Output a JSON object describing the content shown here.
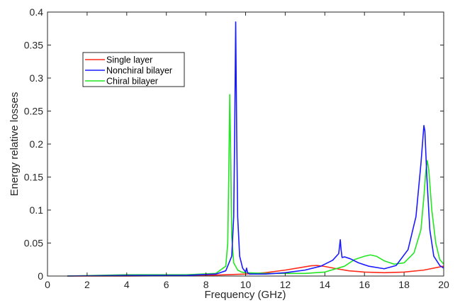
{
  "chart_data": {
    "type": "line",
    "xlabel": "Frequency (GHz)",
    "ylabel": "Energy relative losses",
    "xlim": [
      0,
      20
    ],
    "ylim": [
      0,
      0.4
    ],
    "xticks": [
      "0",
      "2",
      "4",
      "6",
      "8",
      "10",
      "12",
      "14",
      "16",
      "18",
      "20"
    ],
    "yticks": [
      "0",
      "0.05",
      "0.1",
      "0.15",
      "0.2",
      "0.25",
      "0.3",
      "0.35",
      "0.4"
    ],
    "grid": false,
    "legend_position": "top-left",
    "series": [
      {
        "name": "Single layer",
        "color": "#ff2a1a",
        "x": [
          1.0,
          4.0,
          6.0,
          8.0,
          9.0,
          10.0,
          11.0,
          12.0,
          12.8,
          13.3,
          13.6,
          14.0,
          14.6,
          15.2,
          16.0,
          17.0,
          18.0,
          19.0,
          20.0
        ],
        "y": [
          0.0,
          0.0,
          0.0005,
          0.001,
          0.002,
          0.003,
          0.005,
          0.009,
          0.013,
          0.0155,
          0.016,
          0.0145,
          0.011,
          0.008,
          0.006,
          0.005,
          0.006,
          0.009,
          0.015
        ]
      },
      {
        "name": "Nonchiral bilayer",
        "color": "#1a1aff",
        "x": [
          1.0,
          4.0,
          7.0,
          8.5,
          9.0,
          9.3,
          9.4,
          9.45,
          9.5,
          9.55,
          9.6,
          9.7,
          9.85,
          10.0,
          10.05,
          10.1,
          10.2,
          11.0,
          12.0,
          13.0,
          13.8,
          14.4,
          14.7,
          14.78,
          14.82,
          14.87,
          15.0,
          15.3,
          15.7,
          16.2,
          17.0,
          17.6,
          18.2,
          18.6,
          18.85,
          19.0,
          19.05,
          19.15,
          19.3,
          19.5,
          19.8,
          20.0
        ],
        "y": [
          0.0,
          0.001,
          0.001,
          0.003,
          0.008,
          0.03,
          0.09,
          0.22,
          0.385,
          0.22,
          0.09,
          0.03,
          0.012,
          0.006,
          0.012,
          0.005,
          0.003,
          0.003,
          0.005,
          0.009,
          0.015,
          0.024,
          0.034,
          0.055,
          0.04,
          0.028,
          0.029,
          0.026,
          0.02,
          0.015,
          0.011,
          0.016,
          0.04,
          0.09,
          0.17,
          0.228,
          0.22,
          0.15,
          0.07,
          0.03,
          0.016,
          0.012
        ]
      },
      {
        "name": "Chiral bilayer",
        "color": "#22e622",
        "x": [
          1.0,
          4.0,
          7.0,
          8.5,
          9.0,
          9.1,
          9.15,
          9.2,
          9.25,
          9.3,
          9.4,
          9.6,
          9.8,
          10.0,
          11.0,
          12.0,
          13.0,
          14.0,
          15.0,
          15.5,
          16.0,
          16.3,
          16.6,
          17.0,
          17.5,
          18.0,
          18.5,
          18.85,
          19.0,
          19.1,
          19.17,
          19.25,
          19.4,
          19.6,
          19.8,
          20.0
        ],
        "y": [
          0.0,
          0.002,
          0.002,
          0.004,
          0.015,
          0.05,
          0.15,
          0.275,
          0.18,
          0.06,
          0.02,
          0.009,
          0.006,
          0.005,
          0.004,
          0.004,
          0.004,
          0.006,
          0.015,
          0.025,
          0.03,
          0.032,
          0.03,
          0.023,
          0.018,
          0.02,
          0.035,
          0.07,
          0.12,
          0.16,
          0.175,
          0.16,
          0.1,
          0.05,
          0.025,
          0.018
        ]
      }
    ]
  }
}
